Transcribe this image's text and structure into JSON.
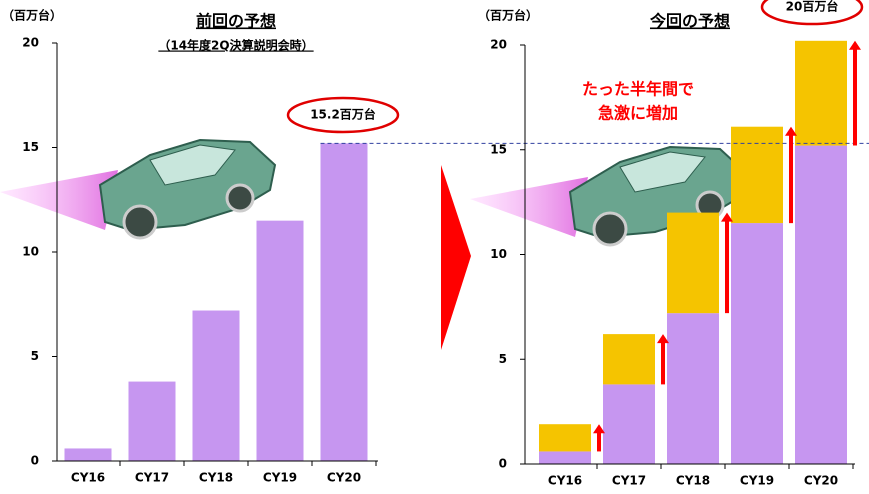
{
  "chart_data": [
    {
      "type": "bar",
      "title": "前回の予想",
      "subtitle": "（14年度2Q決算説明会時）",
      "y_label": "（百万台）",
      "categories": [
        "CY16",
        "CY17",
        "CY18",
        "CY19",
        "CY20"
      ],
      "values": [
        0.6,
        3.8,
        7.2,
        11.5,
        15.2
      ],
      "color": "#c696f0",
      "ylim": [
        0,
        20
      ],
      "yticks": [
        0,
        5,
        10,
        15,
        20
      ],
      "callout": "15.2百万台"
    },
    {
      "type": "stacked_bar",
      "title": "今回の予想",
      "y_label": "（百万台）",
      "categories": [
        "CY16",
        "CY17",
        "CY18",
        "CY19",
        "CY20"
      ],
      "series": [
        {
          "color": "#c696f0",
          "values": [
            0.6,
            3.8,
            7.2,
            11.5,
            15.2
          ]
        },
        {
          "color": "#f5c400",
          "values": [
            1.3,
            2.4,
            4.8,
            4.6,
            5.0
          ]
        }
      ],
      "ylim": [
        0,
        20
      ],
      "yticks": [
        0,
        5,
        10,
        15,
        20
      ],
      "callout": "20百万台",
      "annotation": [
        "たった半年間で",
        "急激に増加"
      ]
    }
  ]
}
